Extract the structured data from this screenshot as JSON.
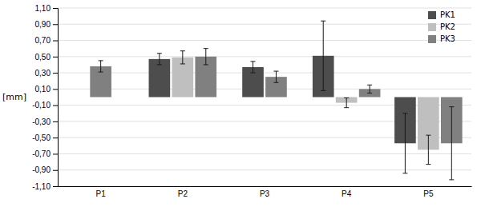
{
  "chart_data": {
    "type": "bar",
    "categories": [
      "P1",
      "P2",
      "P3",
      "P4",
      "P5"
    ],
    "series": [
      {
        "name": "PK1",
        "color": "#4d4d4d",
        "values": [
          null,
          0.47,
          0.37,
          0.51,
          -0.57
        ],
        "errors": [
          null,
          0.07,
          0.07,
          0.43,
          0.37
        ]
      },
      {
        "name": "PK2",
        "color": "#bfbfbf",
        "values": [
          null,
          0.49,
          null,
          -0.07,
          -0.65
        ],
        "errors": [
          null,
          0.08,
          null,
          0.06,
          0.18
        ]
      },
      {
        "name": "PK3",
        "color": "#808080",
        "values": [
          0.38,
          0.5,
          0.25,
          0.1,
          -0.57
        ],
        "errors": [
          0.07,
          0.1,
          0.07,
          0.05,
          0.45
        ]
      }
    ],
    "ylabel": "[mm]",
    "ylim": [
      -1.1,
      1.1
    ],
    "yticks": [
      {
        "value": -1.1,
        "label": "-1,10"
      },
      {
        "value": -0.9,
        "label": "-0,90"
      },
      {
        "value": -0.7,
        "label": "-0,70"
      },
      {
        "value": -0.5,
        "label": "-0,50"
      },
      {
        "value": -0.3,
        "label": "-0,30"
      },
      {
        "value": -0.1,
        "label": "-0,10"
      },
      {
        "value": 0.1,
        "label": "0,10"
      },
      {
        "value": 0.3,
        "label": "0,30"
      },
      {
        "value": 0.5,
        "label": "0,50"
      },
      {
        "value": 0.7,
        "label": "0,70"
      },
      {
        "value": 0.9,
        "label": "0,90"
      },
      {
        "value": 1.1,
        "label": "1,10"
      }
    ],
    "grid": true,
    "legend": "upper right"
  }
}
